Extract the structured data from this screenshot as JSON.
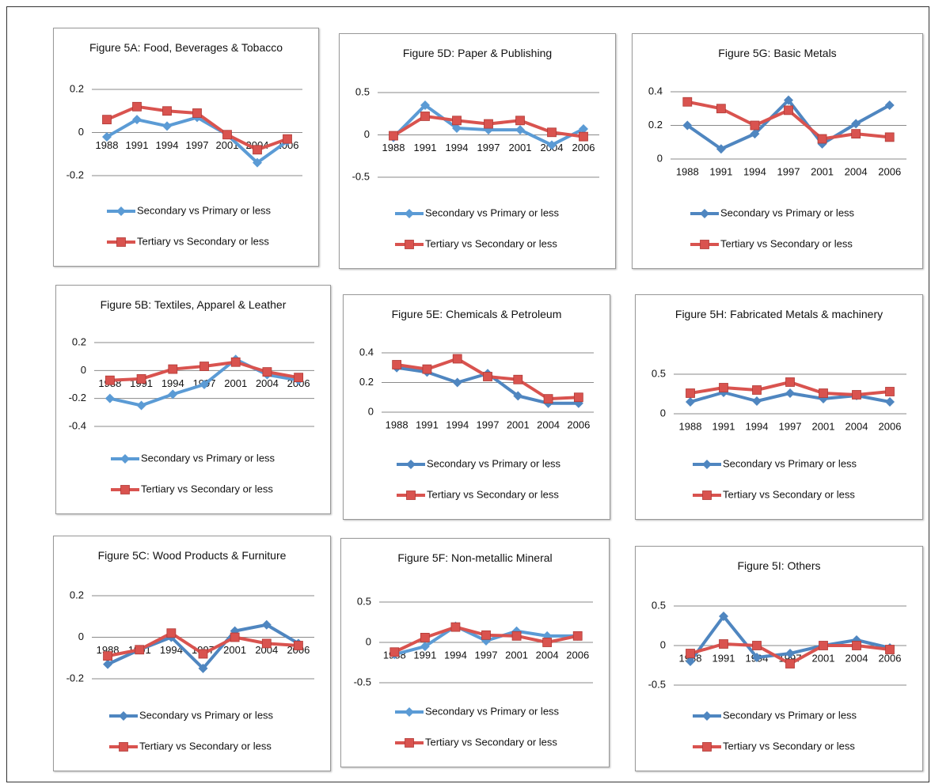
{
  "chart_data": [
    {
      "type": "line",
      "title": "Figure 5A: Food, Beverages & Tobacco",
      "categories": [
        "1988",
        "1991",
        "1994",
        "1997",
        "2001",
        "2004",
        "2006"
      ],
      "series": [
        {
          "name": "Secondary vs Primary or less",
          "color": "#5b9bd5",
          "values": [
            -0.02,
            0.06,
            0.03,
            0.07,
            -0.01,
            -0.14,
            -0.04
          ]
        },
        {
          "name": "Tertiary vs Secondary or less",
          "color": "#d9534f",
          "values": [
            0.06,
            0.12,
            0.1,
            0.09,
            -0.01,
            -0.08,
            -0.03
          ]
        }
      ],
      "ylim": [
        -0.2,
        0.2
      ],
      "yticks": [
        -0.2,
        0,
        0.2
      ]
    },
    {
      "type": "line",
      "title": "Figure 5D: Paper & Publishing",
      "categories": [
        "1988",
        "1991",
        "1994",
        "1997",
        "2001",
        "2004",
        "2006"
      ],
      "series": [
        {
          "name": "Secondary vs Primary or less",
          "color": "#5b9bd5",
          "values": [
            -0.03,
            0.35,
            0.08,
            0.06,
            0.06,
            -0.12,
            0.07
          ]
        },
        {
          "name": "Tertiary vs Secondary or less",
          "color": "#d9534f",
          "values": [
            -0.01,
            0.22,
            0.17,
            0.13,
            0.17,
            0.03,
            -0.02
          ]
        }
      ],
      "ylim": [
        -0.5,
        0.5
      ],
      "yticks": [
        -0.5,
        0,
        0.5
      ]
    },
    {
      "type": "line",
      "title": "Figure 5G: Basic Metals",
      "categories": [
        "1988",
        "1991",
        "1994",
        "1997",
        "2001",
        "2004",
        "2006"
      ],
      "series": [
        {
          "name": "Secondary vs Primary or less",
          "color": "#4f86c0",
          "values": [
            0.2,
            0.06,
            0.15,
            0.35,
            0.09,
            0.21,
            0.32
          ]
        },
        {
          "name": "Tertiary vs Secondary or less",
          "color": "#d9534f",
          "values": [
            0.34,
            0.3,
            0.2,
            0.29,
            0.12,
            0.15,
            0.13
          ]
        }
      ],
      "ylim": [
        0,
        0.4
      ],
      "yticks": [
        0,
        0.2,
        0.4
      ]
    },
    {
      "type": "line",
      "title": "Figure 5B: Textiles, Apparel & Leather",
      "categories": [
        "1988",
        "1991",
        "1994",
        "1997",
        "2001",
        "2004",
        "2006"
      ],
      "series": [
        {
          "name": "Secondary vs Primary or less",
          "color": "#5b9bd5",
          "values": [
            -0.2,
            -0.25,
            -0.17,
            -0.1,
            0.08,
            -0.03,
            -0.07
          ]
        },
        {
          "name": "Tertiary vs Secondary or less",
          "color": "#d9534f",
          "values": [
            -0.07,
            -0.06,
            0.01,
            0.03,
            0.06,
            -0.01,
            -0.05
          ]
        }
      ],
      "ylim": [
        -0.4,
        0.2
      ],
      "yticks": [
        -0.4,
        -0.2,
        0,
        0.2
      ]
    },
    {
      "type": "line",
      "title": "Figure 5E: Chemicals & Petroleum",
      "categories": [
        "1988",
        "1991",
        "1994",
        "1997",
        "2001",
        "2004",
        "2006"
      ],
      "series": [
        {
          "name": "Secondary vs Primary or less",
          "color": "#4f86c0",
          "values": [
            0.3,
            0.27,
            0.2,
            0.26,
            0.11,
            0.06,
            0.06
          ]
        },
        {
          "name": "Tertiary vs Secondary or less",
          "color": "#d9534f",
          "values": [
            0.32,
            0.29,
            0.36,
            0.24,
            0.22,
            0.09,
            0.1
          ]
        }
      ],
      "ylim": [
        0,
        0.4
      ],
      "yticks": [
        0,
        0.2,
        0.4
      ]
    },
    {
      "type": "line",
      "title": "Figure 5H: Fabricated Metals & machinery",
      "categories": [
        "1988",
        "1991",
        "1994",
        "1997",
        "2001",
        "2004",
        "2006"
      ],
      "series": [
        {
          "name": "Secondary vs Primary or less",
          "color": "#4f86c0",
          "values": [
            0.15,
            0.27,
            0.16,
            0.26,
            0.19,
            0.23,
            0.15
          ]
        },
        {
          "name": "Tertiary vs Secondary or less",
          "color": "#d9534f",
          "values": [
            0.26,
            0.33,
            0.3,
            0.4,
            0.26,
            0.24,
            0.28
          ]
        }
      ],
      "ylim": [
        0,
        0.5
      ],
      "yticks": [
        0,
        0.5
      ]
    },
    {
      "type": "line",
      "title": "Figure 5C: Wood Products & Furniture",
      "categories": [
        "1988",
        "1991",
        "1994",
        "1997",
        "2001",
        "2004",
        "2006"
      ],
      "series": [
        {
          "name": "Secondary vs Primary or less",
          "color": "#4f86c0",
          "values": [
            -0.13,
            -0.06,
            0.0,
            -0.15,
            0.03,
            0.06,
            -0.03
          ]
        },
        {
          "name": "Tertiary vs Secondary or less",
          "color": "#d9534f",
          "values": [
            -0.09,
            -0.06,
            0.02,
            -0.08,
            0.0,
            -0.03,
            -0.04
          ]
        }
      ],
      "ylim": [
        -0.2,
        0.2
      ],
      "yticks": [
        -0.2,
        0,
        0.2
      ]
    },
    {
      "type": "line",
      "title": "Figure 5F: Non-metallic Mineral",
      "categories": [
        "1988",
        "1991",
        "1994",
        "1997",
        "2001",
        "2004",
        "2006"
      ],
      "series": [
        {
          "name": "Secondary vs Primary or less",
          "color": "#5b9bd5",
          "values": [
            -0.15,
            -0.05,
            0.2,
            0.02,
            0.14,
            0.08,
            0.08
          ]
        },
        {
          "name": "Tertiary vs Secondary or less",
          "color": "#d9534f",
          "values": [
            -0.12,
            0.06,
            0.19,
            0.09,
            0.08,
            0.0,
            0.08
          ]
        }
      ],
      "ylim": [
        -0.5,
        0.5
      ],
      "yticks": [
        -0.5,
        0,
        0.5
      ]
    },
    {
      "type": "line",
      "title": "Figure 5I: Others",
      "categories": [
        "1988",
        "1991",
        "1994",
        "1997",
        "2001",
        "2004",
        "2006"
      ],
      "series": [
        {
          "name": "Secondary vs Primary or less",
          "color": "#4f86c0",
          "values": [
            -0.2,
            0.37,
            -0.15,
            -0.1,
            0.0,
            0.07,
            -0.03
          ]
        },
        {
          "name": "Tertiary vs Secondary or less",
          "color": "#d9534f",
          "values": [
            -0.1,
            0.02,
            0.0,
            -0.23,
            0.0,
            0.0,
            -0.05
          ]
        }
      ],
      "ylim": [
        -0.5,
        0.5
      ],
      "yticks": [
        -0.5,
        0,
        0.5
      ]
    }
  ]
}
